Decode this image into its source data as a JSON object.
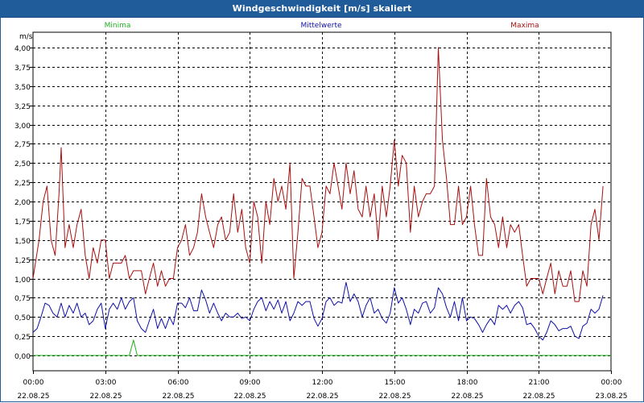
{
  "window": {
    "title": "Windgeschwindigkeit [m/s] skaliert"
  },
  "colors": {
    "min": "#20b020",
    "mean": "#1010a8",
    "max": "#a81010",
    "title_bg": "#1f5c99"
  },
  "chart_data": {
    "type": "line",
    "title": "Windgeschwindigkeit [m/s] skaliert",
    "ylabel": "m/s",
    "ylim": [
      0,
      4.0
    ],
    "yticks": [
      "0,00",
      "0,25",
      "0,50",
      "0,75",
      "1,00",
      "1,25",
      "1,50",
      "1,75",
      "2,00",
      "2,25",
      "2,50",
      "2,75",
      "3,00",
      "3,25",
      "3,50",
      "3,75",
      "4,00"
    ],
    "xlim_hours": [
      0,
      24
    ],
    "xticks": [
      {
        "time": "00:00",
        "date": "22.08.25"
      },
      {
        "time": "03:00",
        "date": "22.08.25"
      },
      {
        "time": "06:00",
        "date": "22.08.25"
      },
      {
        "time": "09:00",
        "date": "22.08.25"
      },
      {
        "time": "12:00",
        "date": "22.08.25"
      },
      {
        "time": "15:00",
        "date": "22.08.25"
      },
      {
        "time": "18:00",
        "date": "22.08.25"
      },
      {
        "time": "21:00",
        "date": "22.08.25"
      },
      {
        "time": "00:00",
        "date": "23.08.25"
      }
    ],
    "legend": {
      "min": "Minima",
      "mean": "Mittelwerte",
      "max": "Maxima"
    },
    "series": [
      {
        "name": "Maxima",
        "key": "max",
        "points": [
          [
            0.0,
            1.0
          ],
          [
            0.25,
            1.5
          ],
          [
            0.42,
            2.0
          ],
          [
            0.58,
            2.2
          ],
          [
            0.75,
            1.5
          ],
          [
            0.92,
            1.3
          ],
          [
            1.08,
            2.1
          ],
          [
            1.17,
            2.7
          ],
          [
            1.33,
            1.4
          ],
          [
            1.5,
            1.7
          ],
          [
            1.67,
            1.4
          ],
          [
            1.83,
            1.7
          ],
          [
            2.0,
            1.9
          ],
          [
            2.17,
            1.3
          ],
          [
            2.33,
            1.0
          ],
          [
            2.5,
            1.4
          ],
          [
            2.67,
            1.2
          ],
          [
            2.83,
            1.5
          ],
          [
            3.0,
            1.5
          ],
          [
            3.17,
            1.0
          ],
          [
            3.33,
            1.2
          ],
          [
            3.5,
            1.2
          ],
          [
            3.67,
            1.2
          ],
          [
            3.83,
            1.3
          ],
          [
            4.0,
            1.0
          ],
          [
            4.17,
            1.1
          ],
          [
            4.33,
            1.1
          ],
          [
            4.5,
            1.1
          ],
          [
            4.67,
            0.8
          ],
          [
            4.83,
            1.0
          ],
          [
            5.0,
            1.2
          ],
          [
            5.17,
            0.9
          ],
          [
            5.33,
            1.1
          ],
          [
            5.5,
            0.9
          ],
          [
            5.67,
            1.0
          ],
          [
            5.83,
            1.0
          ],
          [
            6.0,
            1.4
          ],
          [
            6.17,
            1.5
          ],
          [
            6.33,
            1.7
          ],
          [
            6.5,
            1.3
          ],
          [
            6.67,
            1.4
          ],
          [
            6.83,
            1.6
          ],
          [
            7.0,
            2.1
          ],
          [
            7.17,
            1.8
          ],
          [
            7.33,
            1.6
          ],
          [
            7.5,
            1.4
          ],
          [
            7.67,
            1.7
          ],
          [
            7.83,
            1.8
          ],
          [
            8.0,
            1.5
          ],
          [
            8.17,
            1.6
          ],
          [
            8.33,
            2.1
          ],
          [
            8.5,
            1.6
          ],
          [
            8.67,
            1.9
          ],
          [
            8.83,
            1.4
          ],
          [
            9.0,
            1.2
          ],
          [
            9.17,
            2.0
          ],
          [
            9.33,
            1.8
          ],
          [
            9.5,
            1.2
          ],
          [
            9.67,
            2.0
          ],
          [
            9.83,
            1.7
          ],
          [
            10.0,
            2.3
          ],
          [
            10.17,
            2.0
          ],
          [
            10.33,
            2.2
          ],
          [
            10.5,
            1.9
          ],
          [
            10.67,
            2.5
          ],
          [
            10.83,
            1.0
          ],
          [
            11.0,
            1.6
          ],
          [
            11.17,
            2.3
          ],
          [
            11.33,
            2.2
          ],
          [
            11.5,
            2.2
          ],
          [
            11.67,
            1.8
          ],
          [
            11.83,
            1.4
          ],
          [
            12.0,
            1.6
          ],
          [
            12.17,
            2.2
          ],
          [
            12.33,
            2.1
          ],
          [
            12.5,
            2.5
          ],
          [
            12.67,
            2.2
          ],
          [
            12.83,
            1.9
          ],
          [
            13.0,
            2.5
          ],
          [
            13.17,
            2.1
          ],
          [
            13.33,
            2.4
          ],
          [
            13.5,
            1.9
          ],
          [
            13.67,
            1.8
          ],
          [
            13.83,
            2.2
          ],
          [
            14.0,
            1.8
          ],
          [
            14.17,
            2.1
          ],
          [
            14.33,
            1.5
          ],
          [
            14.5,
            2.2
          ],
          [
            14.67,
            1.8
          ],
          [
            14.83,
            2.2
          ],
          [
            15.0,
            2.8
          ],
          [
            15.17,
            2.2
          ],
          [
            15.33,
            2.6
          ],
          [
            15.5,
            2.5
          ],
          [
            15.67,
            1.6
          ],
          [
            15.83,
            2.2
          ],
          [
            16.0,
            1.8
          ],
          [
            16.17,
            2.0
          ],
          [
            16.33,
            2.1
          ],
          [
            16.5,
            2.1
          ],
          [
            16.67,
            2.2
          ],
          [
            16.83,
            4.0
          ],
          [
            17.0,
            2.8
          ],
          [
            17.17,
            2.3
          ],
          [
            17.33,
            1.7
          ],
          [
            17.5,
            1.7
          ],
          [
            17.67,
            2.2
          ],
          [
            17.83,
            1.7
          ],
          [
            18.0,
            1.8
          ],
          [
            18.17,
            2.2
          ],
          [
            18.33,
            1.7
          ],
          [
            18.5,
            1.3
          ],
          [
            18.67,
            1.3
          ],
          [
            18.83,
            2.3
          ],
          [
            19.0,
            1.8
          ],
          [
            19.17,
            1.7
          ],
          [
            19.33,
            1.4
          ],
          [
            19.5,
            1.8
          ],
          [
            19.67,
            1.4
          ],
          [
            19.83,
            1.7
          ],
          [
            20.0,
            1.6
          ],
          [
            20.17,
            1.7
          ],
          [
            20.33,
            1.3
          ],
          [
            20.5,
            0.9
          ],
          [
            20.67,
            1.0
          ],
          [
            20.83,
            1.0
          ],
          [
            21.0,
            1.0
          ],
          [
            21.17,
            0.8
          ],
          [
            21.33,
            1.0
          ],
          [
            21.5,
            1.2
          ],
          [
            21.67,
            0.8
          ],
          [
            21.83,
            1.1
          ],
          [
            22.0,
            0.9
          ],
          [
            22.17,
            0.9
          ],
          [
            22.33,
            1.1
          ],
          [
            22.5,
            0.7
          ],
          [
            22.67,
            0.7
          ],
          [
            22.83,
            1.1
          ],
          [
            23.0,
            0.9
          ],
          [
            23.17,
            1.7
          ],
          [
            23.33,
            1.9
          ],
          [
            23.5,
            1.5
          ],
          [
            23.67,
            2.2
          ]
        ]
      },
      {
        "name": "Mittelwerte",
        "key": "mean",
        "points": [
          [
            0.0,
            0.3
          ],
          [
            0.17,
            0.35
          ],
          [
            0.33,
            0.5
          ],
          [
            0.5,
            0.68
          ],
          [
            0.67,
            0.65
          ],
          [
            0.83,
            0.55
          ],
          [
            1.0,
            0.5
          ],
          [
            1.17,
            0.68
          ],
          [
            1.33,
            0.5
          ],
          [
            1.5,
            0.65
          ],
          [
            1.67,
            0.55
          ],
          [
            1.83,
            0.68
          ],
          [
            2.0,
            0.5
          ],
          [
            2.17,
            0.55
          ],
          [
            2.33,
            0.4
          ],
          [
            2.5,
            0.45
          ],
          [
            2.67,
            0.6
          ],
          [
            2.83,
            0.68
          ],
          [
            3.0,
            0.35
          ],
          [
            3.17,
            0.6
          ],
          [
            3.33,
            0.68
          ],
          [
            3.5,
            0.6
          ],
          [
            3.67,
            0.75
          ],
          [
            3.83,
            0.6
          ],
          [
            4.0,
            0.7
          ],
          [
            4.17,
            0.75
          ],
          [
            4.33,
            0.45
          ],
          [
            4.5,
            0.35
          ],
          [
            4.67,
            0.3
          ],
          [
            4.83,
            0.45
          ],
          [
            5.0,
            0.6
          ],
          [
            5.17,
            0.35
          ],
          [
            5.33,
            0.48
          ],
          [
            5.5,
            0.35
          ],
          [
            5.67,
            0.5
          ],
          [
            5.83,
            0.4
          ],
          [
            6.0,
            0.68
          ],
          [
            6.17,
            0.68
          ],
          [
            6.33,
            0.62
          ],
          [
            6.5,
            0.75
          ],
          [
            6.67,
            0.58
          ],
          [
            6.83,
            0.58
          ],
          [
            7.0,
            0.85
          ],
          [
            7.17,
            0.72
          ],
          [
            7.33,
            0.55
          ],
          [
            7.5,
            0.68
          ],
          [
            7.67,
            0.55
          ],
          [
            7.83,
            0.45
          ],
          [
            8.0,
            0.55
          ],
          [
            8.17,
            0.5
          ],
          [
            8.33,
            0.5
          ],
          [
            8.5,
            0.55
          ],
          [
            8.67,
            0.48
          ],
          [
            8.83,
            0.5
          ],
          [
            9.0,
            0.45
          ],
          [
            9.17,
            0.6
          ],
          [
            9.33,
            0.7
          ],
          [
            9.5,
            0.75
          ],
          [
            9.67,
            0.58
          ],
          [
            9.83,
            0.7
          ],
          [
            10.0,
            0.6
          ],
          [
            10.17,
            0.72
          ],
          [
            10.33,
            0.55
          ],
          [
            10.5,
            0.7
          ],
          [
            10.67,
            0.45
          ],
          [
            10.83,
            0.55
          ],
          [
            11.0,
            0.7
          ],
          [
            11.17,
            0.65
          ],
          [
            11.33,
            0.7
          ],
          [
            11.5,
            0.7
          ],
          [
            11.67,
            0.48
          ],
          [
            11.83,
            0.38
          ],
          [
            12.0,
            0.48
          ],
          [
            12.17,
            0.7
          ],
          [
            12.33,
            0.75
          ],
          [
            12.5,
            0.65
          ],
          [
            12.67,
            0.7
          ],
          [
            12.83,
            0.68
          ],
          [
            13.0,
            0.95
          ],
          [
            13.17,
            0.7
          ],
          [
            13.33,
            0.8
          ],
          [
            13.5,
            0.7
          ],
          [
            13.67,
            0.5
          ],
          [
            13.83,
            0.65
          ],
          [
            14.0,
            0.75
          ],
          [
            14.17,
            0.55
          ],
          [
            14.33,
            0.6
          ],
          [
            14.5,
            0.48
          ],
          [
            14.67,
            0.42
          ],
          [
            14.83,
            0.55
          ],
          [
            15.0,
            0.88
          ],
          [
            15.17,
            0.68
          ],
          [
            15.33,
            0.75
          ],
          [
            15.5,
            0.6
          ],
          [
            15.67,
            0.4
          ],
          [
            15.83,
            0.6
          ],
          [
            16.0,
            0.55
          ],
          [
            16.17,
            0.68
          ],
          [
            16.33,
            0.7
          ],
          [
            16.5,
            0.55
          ],
          [
            16.67,
            0.62
          ],
          [
            16.83,
            0.88
          ],
          [
            17.0,
            0.8
          ],
          [
            17.17,
            0.62
          ],
          [
            17.33,
            0.5
          ],
          [
            17.5,
            0.7
          ],
          [
            17.67,
            0.45
          ],
          [
            17.83,
            0.75
          ],
          [
            18.0,
            0.45
          ],
          [
            18.17,
            0.5
          ],
          [
            18.33,
            0.48
          ],
          [
            18.5,
            0.4
          ],
          [
            18.67,
            0.3
          ],
          [
            18.83,
            0.4
          ],
          [
            19.0,
            0.48
          ],
          [
            19.17,
            0.4
          ],
          [
            19.33,
            0.65
          ],
          [
            19.5,
            0.6
          ],
          [
            19.67,
            0.65
          ],
          [
            19.83,
            0.55
          ],
          [
            20.0,
            0.65
          ],
          [
            20.17,
            0.7
          ],
          [
            20.33,
            0.62
          ],
          [
            20.5,
            0.4
          ],
          [
            20.67,
            0.42
          ],
          [
            20.83,
            0.35
          ],
          [
            21.0,
            0.25
          ],
          [
            21.17,
            0.2
          ],
          [
            21.33,
            0.3
          ],
          [
            21.5,
            0.45
          ],
          [
            21.67,
            0.4
          ],
          [
            21.83,
            0.32
          ],
          [
            22.0,
            0.35
          ],
          [
            22.17,
            0.35
          ],
          [
            22.33,
            0.38
          ],
          [
            22.5,
            0.25
          ],
          [
            22.67,
            0.22
          ],
          [
            22.83,
            0.38
          ],
          [
            23.0,
            0.42
          ],
          [
            23.17,
            0.6
          ],
          [
            23.33,
            0.55
          ],
          [
            23.5,
            0.6
          ],
          [
            23.67,
            0.78
          ]
        ]
      },
      {
        "name": "Minima",
        "key": "min",
        "points": [
          [
            0.0,
            0.0
          ],
          [
            4.0,
            0.0
          ],
          [
            4.17,
            0.2
          ],
          [
            4.33,
            0.0
          ],
          [
            24.0,
            0.0
          ]
        ]
      }
    ]
  }
}
